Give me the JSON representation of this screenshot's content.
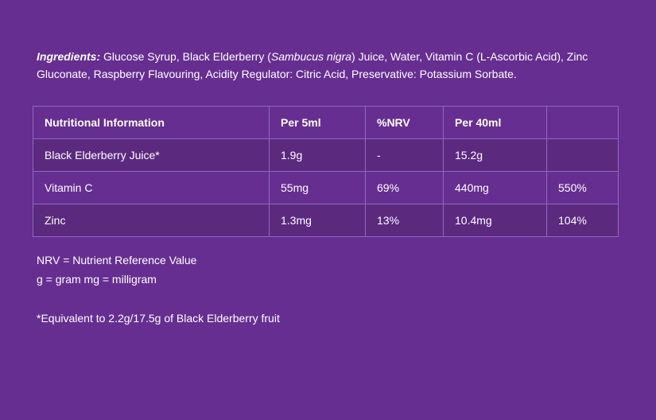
{
  "theme": {
    "background_color": "#662e91",
    "stripe_row_color": "#5b2a7f",
    "table_border_color": "#9168c0",
    "text_color": "#ffffff"
  },
  "ingredients": {
    "label": "Ingredients:",
    "before_latin": " Glucose Syrup, Black Elderberry (",
    "latin_name": "Sambucus nigra",
    "after_latin": ") Juice, Water, Vitamin C (L-Ascorbic Acid), Zinc Gluconate, Raspberry Flavouring, Acidity Regulator: Citric Acid, Preservative: Potassium Sorbate."
  },
  "table": {
    "headers": [
      "Nutritional Information",
      "Per 5ml",
      "%NRV",
      "Per 40ml",
      ""
    ],
    "rows": [
      [
        "Black Elderberry Juice*",
        "1.9g",
        "-",
        "15.2g",
        ""
      ],
      [
        "Vitamin C",
        "55mg",
        "69%",
        "440mg",
        "550%"
      ],
      [
        "Zinc",
        "1.3mg",
        "13%",
        "10.4mg",
        "104%"
      ]
    ]
  },
  "notes": {
    "nrv_definition": "NRV = Nutrient Reference Value",
    "unit_definitions": "g = gram mg = milligram",
    "equivalent_note": "*Equivalent to 2.2g/17.5g of Black Elderberry fruit"
  }
}
